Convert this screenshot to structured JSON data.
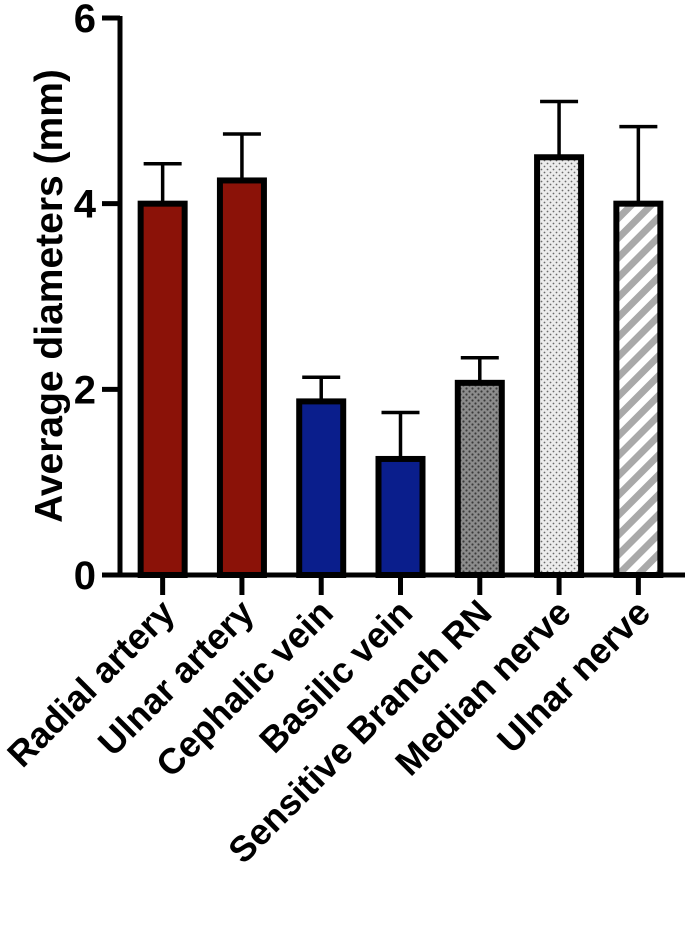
{
  "chart_data": {
    "type": "bar",
    "title": "",
    "xlabel": "",
    "ylabel": "Average diameters (mm)",
    "ylim": [
      0,
      6
    ],
    "yticks": [
      0,
      2,
      4,
      6
    ],
    "ytick_labels": [
      "0",
      "2",
      "4",
      "6"
    ],
    "grid": false,
    "categories": [
      "Radial artery",
      "Ulnar artery",
      "Cephalic vein",
      "Basilic vein",
      "Sensitive Branch RN",
      "Median nerve",
      "Ulnar nerve"
    ],
    "values": [
      4.0,
      4.25,
      1.87,
      1.25,
      2.07,
      4.5,
      4.0
    ],
    "error_upper": [
      0.43,
      0.5,
      0.26,
      0.5,
      0.27,
      0.6,
      0.83
    ],
    "fills": [
      {
        "color": "#8b1208",
        "pattern": "solid"
      },
      {
        "color": "#8b1208",
        "pattern": "solid"
      },
      {
        "color": "#0a1e8c",
        "pattern": "solid"
      },
      {
        "color": "#0a1e8c",
        "pattern": "solid"
      },
      {
        "color": "#8c8c8c",
        "pattern": "dots"
      },
      {
        "color": "#e6e6e6",
        "pattern": "dots"
      },
      {
        "color": "#b3b3b3",
        "pattern": "hatch"
      }
    ]
  }
}
